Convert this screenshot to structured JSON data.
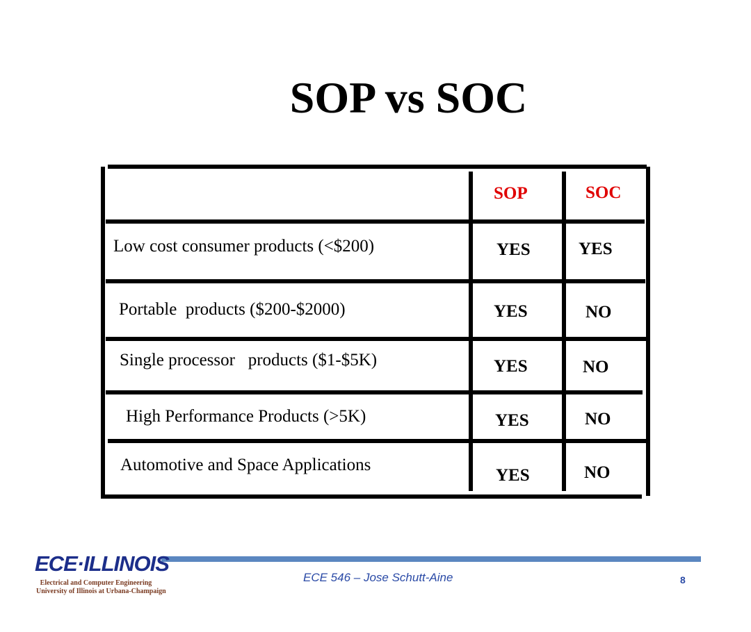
{
  "slide": {
    "title": "SOP vs SOC"
  },
  "table": {
    "headers": {
      "sop": "SOP",
      "soc": "SOC"
    },
    "header_color": "#e00000",
    "rows": [
      {
        "label": "Low cost consumer products (<$200)",
        "sop": "YES",
        "soc": "YES"
      },
      {
        "label": "Portable  products ($200-$2000)",
        "sop": "YES",
        "soc": "NO"
      },
      {
        "label": "Single processor   products ($1-$5K)",
        "sop": "YES",
        "soc": "NO"
      },
      {
        "label": "High Performance Products (>5K)",
        "sop": "YES",
        "soc": "NO"
      },
      {
        "label": "Automotive and Space Applications",
        "sop": "YES",
        "soc": "NO"
      }
    ]
  },
  "footer": {
    "logo_text": "ECE·ILLINOIS",
    "logo_line1": "Electrical and Computer Engineering",
    "logo_line2": "University of Illinois at Urbana-Champaign",
    "course": "ECE 546 – Jose Schutt-Aine",
    "page_number": "8",
    "bar_color": "#5b87c0"
  }
}
